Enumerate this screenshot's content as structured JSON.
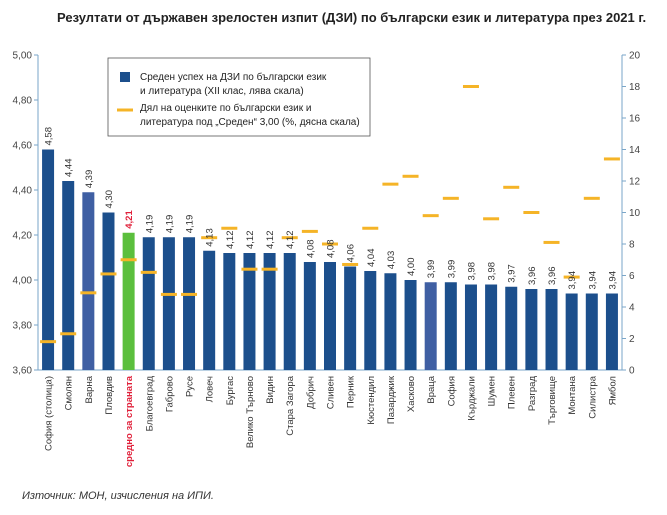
{
  "title": "Резултати от държавен зрелостен изпит (ДЗИ) по български език и литература през 2021 г.",
  "source": "Източник: МОН, изчисления на ИПИ.",
  "colors": {
    "bar_main": "#1c4f8c",
    "bar_light": "#3f5fa3",
    "bar_highlight": "#5bbf3d",
    "highlight_label": "#e0203a",
    "marker": "#f5b427",
    "axis": "#7aa6c8"
  },
  "chart_data": {
    "type": "bar",
    "title": "Резултати от държавен зрелостен изпит (ДЗИ) по български език и литература през 2021 г.",
    "categories": [
      "София (столица)",
      "Смолян",
      "Варна",
      "Пловдив",
      "средно за страната",
      "Благоевград",
      "Габрово",
      "Русе",
      "Ловеч",
      "Бургас",
      "Велико Търново",
      "Видин",
      "Стара Загора",
      "Добрич",
      "Сливен",
      "Перник",
      "Кюстендил",
      "Пазарджик",
      "Хасково",
      "Враца",
      "София",
      "Кърджали",
      "Шумен",
      "Плевен",
      "Разград",
      "Търговище",
      "Монтана",
      "Силистра",
      "Ямбол"
    ],
    "highlight_category": "средно за страната",
    "bar_styles": [
      "main",
      "main",
      "light",
      "main",
      "highlight",
      "main",
      "main",
      "main",
      "main",
      "main",
      "main",
      "main",
      "main",
      "main",
      "main",
      "main",
      "main",
      "main",
      "main",
      "light",
      "main",
      "main",
      "main",
      "main",
      "main",
      "main",
      "main",
      "main",
      "main"
    ],
    "series": [
      {
        "name": "Среден успех на ДЗИ по български език и литература (XII клас, лява скала)",
        "type": "bar",
        "axis": "left",
        "values": [
          4.58,
          4.44,
          4.39,
          4.3,
          4.21,
          4.19,
          4.19,
          4.19,
          4.13,
          4.12,
          4.12,
          4.12,
          4.12,
          4.08,
          4.08,
          4.06,
          4.04,
          4.03,
          4.0,
          3.99,
          3.99,
          3.98,
          3.98,
          3.97,
          3.96,
          3.96,
          3.94,
          3.94,
          3.94
        ],
        "value_labels": [
          "4,58",
          "4,44",
          "4,39",
          "4,30",
          "4,21",
          "4,19",
          "4,19",
          "4,19",
          "4,13",
          "4,12",
          "4,12",
          "4,12",
          "4,12",
          "4,08",
          "4,08",
          "4,06",
          "4,04",
          "4,03",
          "4,00",
          "3,99",
          "3,99",
          "3,98",
          "3,98",
          "3,97",
          "3,96",
          "3,96",
          "3,94",
          "3,94",
          "3,94"
        ]
      },
      {
        "name": "Дял на оценките по български език и литература под „Среден“ 3,00 (%, дясна скала)",
        "type": "marker",
        "axis": "right",
        "values": [
          1.8,
          2.3,
          4.9,
          6.1,
          7.0,
          6.2,
          4.8,
          4.8,
          8.4,
          9.0,
          6.4,
          6.4,
          8.4,
          8.8,
          8.0,
          6.7,
          9.0,
          11.8,
          12.3,
          9.8,
          10.9,
          18.0,
          9.6,
          11.6,
          10.0,
          8.1,
          5.9,
          10.9,
          13.4
        ]
      }
    ],
    "y_left": {
      "min": 3.6,
      "max": 5.0,
      "step": 0.2,
      "tick_labels": [
        "3,60",
        "3,80",
        "4,00",
        "4,20",
        "4,40",
        "4,60",
        "4,80",
        "5,00"
      ]
    },
    "y_right": {
      "min": 0,
      "max": 20,
      "step": 2,
      "tick_labels": [
        "0",
        "2",
        "4",
        "6",
        "8",
        "10",
        "12",
        "14",
        "16",
        "18",
        "20"
      ]
    },
    "grid": false,
    "legend_position": "top-left"
  }
}
